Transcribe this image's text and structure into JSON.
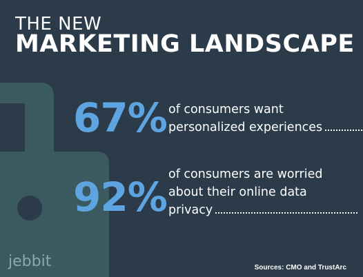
{
  "title": {
    "line1": "THE NEW",
    "line2": "MARKETING LANDSCAPE"
  },
  "stats": [
    {
      "value": "67%",
      "lines": [
        "of consumers want",
        "personalized experiences"
      ]
    },
    {
      "value": "92%",
      "lines": [
        "of consumers are worried",
        "about their online data",
        "privacy"
      ]
    }
  ],
  "brand": "jebbit",
  "sources": "Sources: CMO and TrustArc",
  "colors": {
    "background": "#2b3b49",
    "lock": "#3a5a5f",
    "accent": "#5ea4e0",
    "brand": "#86aab0"
  },
  "background_icon": "lock-icon"
}
